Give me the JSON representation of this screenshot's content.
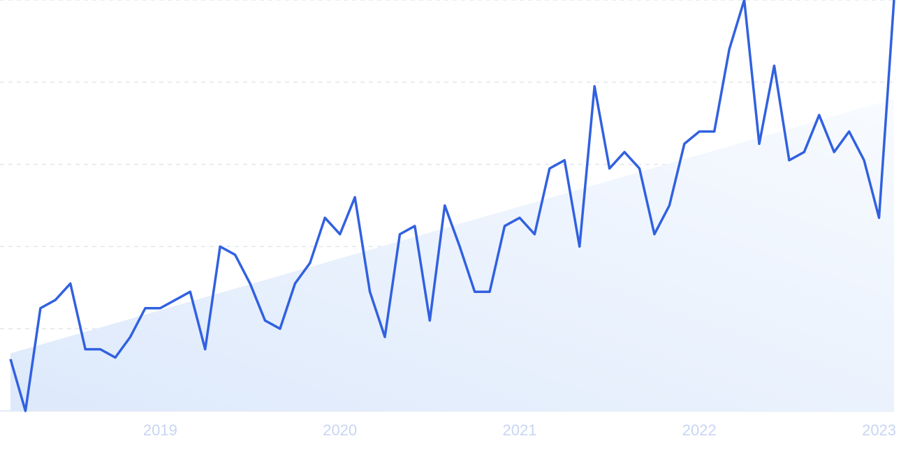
{
  "chart_data": {
    "type": "line",
    "categories": [
      null,
      null,
      null,
      null,
      null,
      null,
      null,
      null,
      null,
      null,
      "2019",
      null,
      null,
      null,
      null,
      null,
      null,
      null,
      null,
      null,
      null,
      null,
      "2020",
      null,
      null,
      null,
      null,
      null,
      null,
      null,
      null,
      null,
      null,
      null,
      "2021",
      null,
      null,
      null,
      null,
      null,
      null,
      null,
      null,
      null,
      null,
      null,
      "2022",
      null,
      null,
      null,
      null,
      null,
      null,
      null,
      null,
      null,
      null,
      null,
      "2023",
      null
    ],
    "values": [
      12.6,
      0,
      25,
      27,
      31,
      15,
      15,
      13,
      18,
      25,
      25,
      27,
      29,
      15,
      40,
      38,
      31,
      22,
      20,
      31,
      36,
      47,
      43,
      52,
      29,
      18,
      43,
      45,
      22,
      50,
      40,
      29,
      29,
      45,
      47,
      43,
      59,
      61,
      40,
      79,
      59,
      63,
      59,
      43,
      50,
      65,
      68,
      68,
      88,
      100,
      65,
      84,
      61,
      63,
      72,
      63,
      68,
      61,
      47,
      100
    ],
    "color": "#3161e0",
    "trend": [
      14,
      76
    ],
    "ylim": [
      0,
      100
    ],
    "yticks": [
      0,
      20,
      40,
      60,
      80,
      100
    ],
    "grid": true
  }
}
